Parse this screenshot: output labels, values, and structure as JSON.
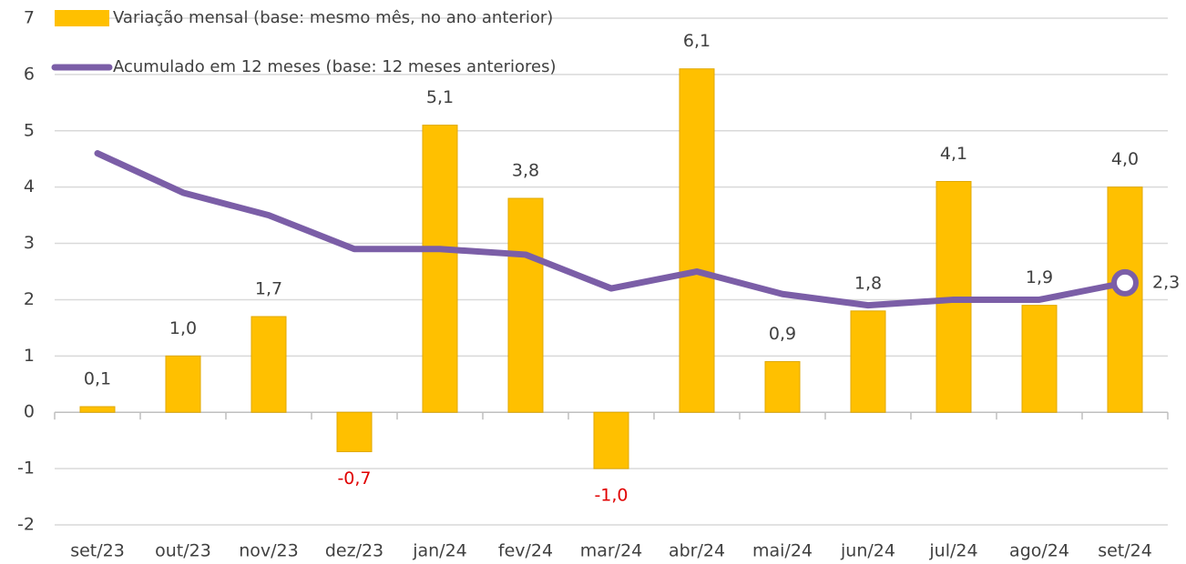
{
  "chart_data": {
    "type": "bar_line",
    "categories": [
      "set/23",
      "out/23",
      "nov/23",
      "dez/23",
      "jan/24",
      "fev/24",
      "mar/24",
      "abr/24",
      "mai/24",
      "jun/24",
      "jul/24",
      "ago/24",
      "set/24"
    ],
    "series": [
      {
        "name": "Variação mensal (base: mesmo mês, no ano anterior)",
        "type": "bar",
        "color": "#ffc000",
        "values": [
          0.1,
          1.0,
          1.7,
          -0.7,
          5.1,
          3.8,
          -1.0,
          6.1,
          0.9,
          1.8,
          4.1,
          1.9,
          4.0
        ],
        "value_labels": [
          "0,1",
          "1,0",
          "1,7",
          "-0,7",
          "5,1",
          "3,8",
          "-1,0",
          "6,1",
          "0,9",
          "1,8",
          "4,1",
          "1,9",
          "4,0"
        ]
      },
      {
        "name": "Acumulado em 12 meses (base: 12 meses anteriores)",
        "type": "line",
        "color": "#7b5ea7",
        "values": [
          4.6,
          3.9,
          3.5,
          2.9,
          2.9,
          2.8,
          2.2,
          2.5,
          2.1,
          1.9,
          2.0,
          2.0,
          2.3
        ],
        "value_labels": [
          null,
          null,
          null,
          null,
          null,
          null,
          null,
          null,
          null,
          null,
          null,
          null,
          "2,3"
        ]
      }
    ],
    "negative_label_color": "#e00000",
    "ylim": [
      -2,
      7
    ],
    "yticks": [
      -2,
      -1,
      0,
      1,
      2,
      3,
      4,
      5,
      6,
      7
    ],
    "grid": true,
    "legend": "top-left"
  }
}
